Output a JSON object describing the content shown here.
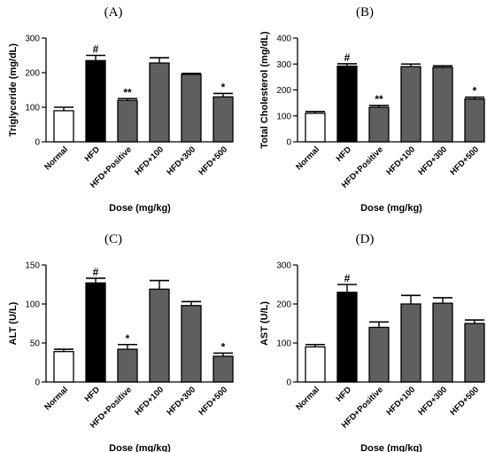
{
  "colors": {
    "normal": "#ffffff",
    "hfd": "#000000",
    "treatment": "#5f5f5f",
    "axis": "#000000"
  },
  "chart_data": [
    {
      "type": "bar",
      "panel": "(A)",
      "categories": [
        "Normal",
        "HFD",
        "HFD+Positive",
        "HFD+100",
        "HFD+300",
        "HFD+500"
      ],
      "values": [
        90,
        235,
        120,
        228,
        195,
        130
      ],
      "errors": [
        10,
        15,
        5,
        15,
        3,
        10
      ],
      "significance": [
        "",
        "#",
        "**",
        "",
        "",
        "*"
      ],
      "xlabel": "Dose  (mg/kg)",
      "ylabel": "Triglyceride (mg/dL)",
      "ylim": [
        0,
        300
      ],
      "yticks": [
        0,
        100,
        200,
        300
      ],
      "bar_colors": [
        "normal",
        "hfd",
        "treatment",
        "treatment",
        "treatment",
        "treatment"
      ]
    },
    {
      "type": "bar",
      "panel": "(B)",
      "categories": [
        "Normal",
        "HFD",
        "HFD+Positive",
        "HFD+100",
        "HFD+300",
        "HFD+500"
      ],
      "values": [
        110,
        292,
        133,
        290,
        287,
        165
      ],
      "errors": [
        7,
        9,
        7,
        10,
        6,
        7
      ],
      "significance": [
        "",
        "#",
        "**",
        "",
        "",
        "*"
      ],
      "xlabel": "Dose  (mg/kg)",
      "ylabel": "Total Cholesterol (mg/dL)",
      "ylim": [
        0,
        400
      ],
      "yticks": [
        0,
        100,
        200,
        300,
        400
      ],
      "bar_colors": [
        "normal",
        "hfd",
        "treatment",
        "treatment",
        "treatment",
        "treatment"
      ]
    },
    {
      "type": "bar",
      "panel": "(C)",
      "categories": [
        "Normal",
        "HFD",
        "HFD+Positive",
        "HFD+100",
        "HFD+300",
        "HFD+500"
      ],
      "values": [
        39,
        127,
        42,
        119,
        98,
        33
      ],
      "errors": [
        3,
        6,
        6,
        11,
        5,
        4
      ],
      "significance": [
        "",
        "#",
        "*",
        "",
        "",
        "*"
      ],
      "xlabel": "Dose  (mg/kg)",
      "ylabel": "ALT (U/L)",
      "ylim": [
        0,
        150
      ],
      "yticks": [
        0,
        50,
        100,
        150
      ],
      "bar_colors": [
        "normal",
        "hfd",
        "treatment",
        "treatment",
        "treatment",
        "treatment"
      ]
    },
    {
      "type": "bar",
      "panel": "(D)",
      "categories": [
        "Normal",
        "HFD",
        "HFD+Positive",
        "HFD+100",
        "HFD+300",
        "HFD+500"
      ],
      "values": [
        90,
        230,
        140,
        200,
        202,
        150
      ],
      "errors": [
        6,
        20,
        14,
        22,
        14,
        9
      ],
      "significance": [
        "",
        "#",
        "",
        "",
        "",
        ""
      ],
      "xlabel": "Dose  (mg/kg)",
      "ylabel": "AST (U/L)",
      "ylim": [
        0,
        300
      ],
      "yticks": [
        0,
        100,
        200,
        300
      ],
      "bar_colors": [
        "normal",
        "hfd",
        "treatment",
        "treatment",
        "treatment",
        "treatment"
      ]
    }
  ]
}
